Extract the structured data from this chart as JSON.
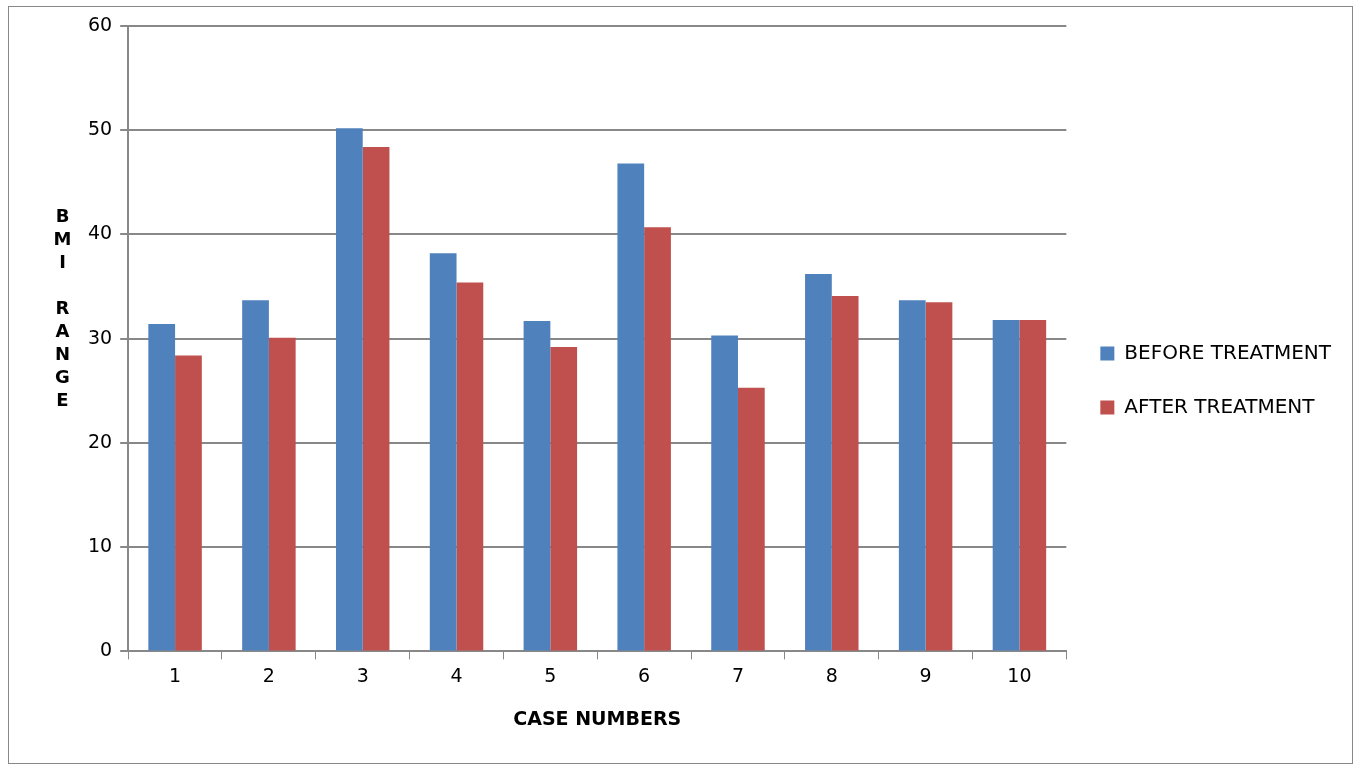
{
  "chart_data": {
    "type": "bar",
    "xlabel": "CASE NUMBERS",
    "ylabel": "BMI RANGE",
    "categories": [
      "1",
      "2",
      "3",
      "4",
      "5",
      "6",
      "7",
      "8",
      "9",
      "10"
    ],
    "series": [
      {
        "name": "BEFORE TREATMENT",
        "color": "#4f81bd",
        "values": [
          31.4,
          33.7,
          50.2,
          38.2,
          31.7,
          46.8,
          30.3,
          36.2,
          33.7,
          31.8
        ]
      },
      {
        "name": "AFTER TREATMENT",
        "color": "#c0504d",
        "values": [
          28.4,
          30.1,
          48.4,
          35.4,
          29.2,
          40.7,
          25.3,
          34.1,
          33.5,
          31.8
        ]
      }
    ],
    "ylim": [
      0,
      60
    ],
    "yticks": [
      0,
      10,
      20,
      30,
      40,
      50,
      60
    ],
    "grid": "y",
    "legend": "right"
  }
}
